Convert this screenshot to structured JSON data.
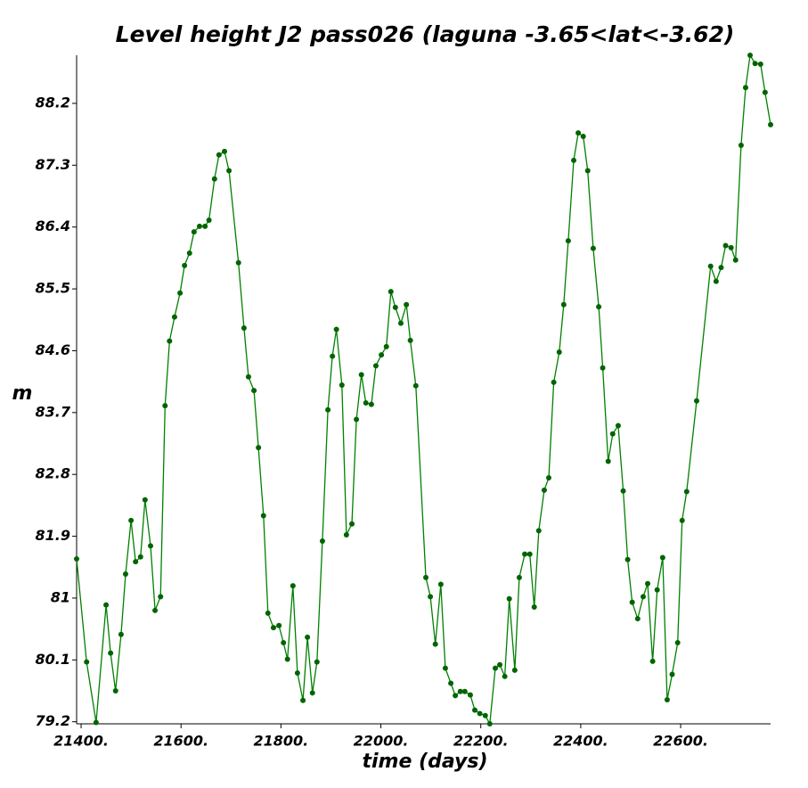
{
  "chart_data": {
    "type": "line",
    "title": "Level height J2 pass026 (laguna -3.65<lat<-3.62)",
    "x_label": "time (days)",
    "y_label": "m",
    "x": [
      21391,
      21411,
      21430,
      21450,
      21459,
      21469,
      21480,
      21489,
      21500,
      21509,
      21519,
      21528,
      21539,
      21548,
      21559,
      21568,
      21577,
      21587,
      21598,
      21607,
      21617,
      21626,
      21637,
      21648,
      21656,
      21667,
      21676,
      21687,
      21696,
      21715,
      21726,
      21735,
      21746,
      21755,
      21765,
      21774,
      21785,
      21796,
      21805,
      21813,
      21824,
      21833,
      21844,
      21853,
      21863,
      21872,
      21883,
      21894,
      21903,
      21911,
      21922,
      21931,
      21942,
      21951,
      21961,
      21970,
      21981,
      21990,
      22001,
      22011,
      22020,
      22029,
      22040,
      22051,
      22059,
      22070,
      22090,
      22099,
      22109,
      22120,
      22129,
      22140,
      22149,
      22159,
      22168,
      22179,
      22188,
      22198,
      22209,
      22218,
      22229,
      22238,
      22248,
      22257,
      22268,
      22277,
      22288,
      22298,
      22307,
      22316,
      22327,
      22336,
      22346,
      22357,
      22366,
      22375,
      22386,
      22395,
      22405,
      22414,
      22425,
      22436,
      22444,
      22455,
      22464,
      22475,
      22485,
      22494,
      22503,
      22514,
      22525,
      22534,
      22544,
      22553,
      22564,
      22573,
      22583,
      22594,
      22603,
      22612,
      22632,
      22660,
      22671,
      22681,
      22690,
      22701,
      22710,
      22721,
      22730,
      22739,
      22749,
      22760,
      22769,
      22780
    ],
    "series": [
      {
        "name": "level",
        "color": "#008000",
        "marker_color": "#006400",
        "values": [
          81.57,
          80.07,
          79.19,
          80.9,
          80.2,
          79.65,
          80.47,
          81.35,
          82.13,
          81.53,
          81.6,
          82.43,
          81.76,
          80.82,
          81.02,
          83.8,
          84.74,
          85.09,
          85.44,
          85.84,
          86.02,
          86.33,
          86.41,
          86.41,
          86.5,
          87.1,
          87.45,
          87.5,
          87.22,
          85.88,
          84.93,
          84.22,
          84.02,
          83.19,
          82.2,
          80.78,
          80.57,
          80.6,
          80.35,
          80.11,
          81.18,
          79.91,
          79.51,
          80.43,
          79.62,
          80.07,
          81.83,
          83.74,
          84.52,
          84.91,
          84.1,
          81.92,
          82.08,
          83.6,
          84.25,
          83.84,
          83.82,
          84.38,
          84.54,
          84.66,
          85.46,
          85.23,
          85.0,
          85.27,
          84.75,
          84.09,
          81.3,
          81.02,
          80.33,
          81.2,
          79.98,
          79.76,
          79.58,
          79.64,
          79.64,
          79.59,
          79.37,
          79.32,
          79.29,
          79.17,
          79.98,
          80.03,
          79.86,
          80.99,
          79.95,
          81.3,
          81.64,
          81.64,
          80.87,
          81.98,
          82.57,
          82.75,
          84.14,
          84.58,
          85.27,
          86.2,
          87.37,
          87.77,
          87.72,
          87.22,
          86.09,
          85.24,
          84.35,
          82.99,
          83.39,
          83.51,
          82.56,
          81.56,
          80.94,
          80.7,
          81.02,
          81.21,
          80.08,
          81.12,
          81.59,
          79.52,
          79.89,
          80.35,
          82.13,
          82.55,
          83.87,
          85.83,
          85.61,
          85.81,
          86.13,
          86.1,
          85.92,
          87.59,
          88.43,
          88.9,
          88.78,
          88.77,
          88.36,
          87.89
        ]
      }
    ],
    "xlim": [
      21391,
      22780
    ],
    "ylim": [
      79.17,
      88.9
    ],
    "xticks": [
      {
        "value": 21400,
        "label": "21400."
      },
      {
        "value": 21600,
        "label": "21600."
      },
      {
        "value": 21800,
        "label": "21800."
      },
      {
        "value": 22000,
        "label": "22000."
      },
      {
        "value": 22200,
        "label": "22200."
      },
      {
        "value": 22400,
        "label": "22400."
      },
      {
        "value": 22600,
        "label": "22600."
      }
    ],
    "yticks": [
      79.2,
      80.1,
      81.0,
      {
        "value": 81.9,
        "label": "81.9"
      },
      82.8,
      83.7,
      84.6,
      85.5,
      86.4,
      87.3,
      88.2
    ],
    "grid": false
  }
}
